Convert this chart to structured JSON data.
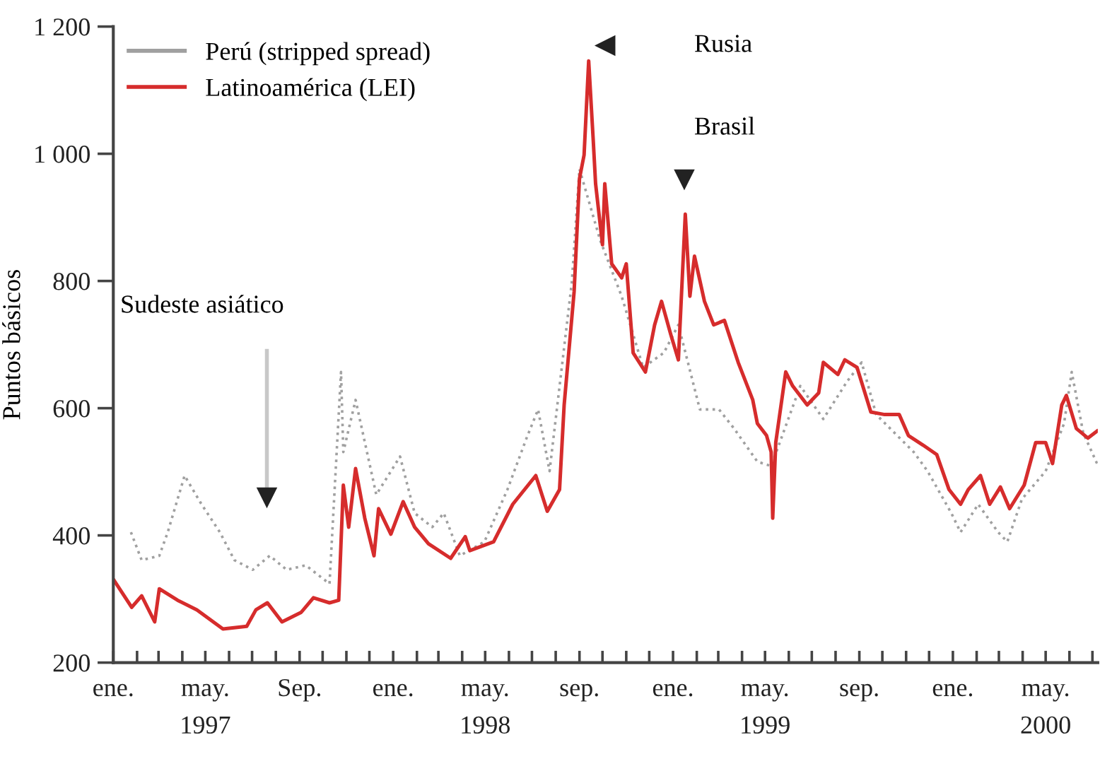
{
  "chart_data": {
    "type": "line",
    "ylabel": "Puntos básicos",
    "ylim": [
      200,
      1200
    ],
    "yticks": [
      {
        "value": 200,
        "label": "200"
      },
      {
        "value": 400,
        "label": "400"
      },
      {
        "value": 600,
        "label": "600"
      },
      {
        "value": 800,
        "label": "800"
      },
      {
        "value": 1000,
        "label": "1 000"
      },
      {
        "value": 1200,
        "label": "1 200"
      }
    ],
    "xlim": [
      "1997-01-01",
      "2000-07-08"
    ],
    "xticks": [
      {
        "value": "1997-01-01",
        "label": "ene."
      },
      {
        "value": "1997-02-01",
        "label": null
      },
      {
        "value": "1997-03-01",
        "label": null
      },
      {
        "value": "1997-04-01",
        "label": null
      },
      {
        "value": "1997-05-01",
        "label": "may.\n1997"
      },
      {
        "value": "1997-06-01",
        "label": null
      },
      {
        "value": "1997-07-01",
        "label": null
      },
      {
        "value": "1997-08-01",
        "label": null
      },
      {
        "value": "1997-09-01",
        "label": "Sep."
      },
      {
        "value": "1997-10-01",
        "label": null
      },
      {
        "value": "1997-11-01",
        "label": null
      },
      {
        "value": "1997-12-01",
        "label": null
      },
      {
        "value": "1998-01-01",
        "label": "ene."
      },
      {
        "value": "1998-02-01",
        "label": null
      },
      {
        "value": "1998-03-01",
        "label": null
      },
      {
        "value": "1998-04-01",
        "label": null
      },
      {
        "value": "1998-05-01",
        "label": "may.\n1998"
      },
      {
        "value": "1998-06-01",
        "label": null
      },
      {
        "value": "1998-07-01",
        "label": null
      },
      {
        "value": "1998-08-01",
        "label": null
      },
      {
        "value": "1998-09-01",
        "label": "sep."
      },
      {
        "value": "1998-10-01",
        "label": null
      },
      {
        "value": "1998-11-01",
        "label": null
      },
      {
        "value": "1998-12-01",
        "label": null
      },
      {
        "value": "1999-01-01",
        "label": "ene."
      },
      {
        "value": "1999-02-01",
        "label": null
      },
      {
        "value": "1999-03-01",
        "label": null
      },
      {
        "value": "1999-04-01",
        "label": null
      },
      {
        "value": "1999-05-01",
        "label": "may.\n1999"
      },
      {
        "value": "1999-06-01",
        "label": null
      },
      {
        "value": "1999-07-01",
        "label": null
      },
      {
        "value": "1999-08-01",
        "label": null
      },
      {
        "value": "1999-09-01",
        "label": "sep."
      },
      {
        "value": "1999-10-01",
        "label": null
      },
      {
        "value": "1999-11-01",
        "label": null
      },
      {
        "value": "1999-12-01",
        "label": null
      },
      {
        "value": "2000-01-01",
        "label": "ene."
      },
      {
        "value": "2000-02-01",
        "label": null
      },
      {
        "value": "2000-03-01",
        "label": null
      },
      {
        "value": "2000-04-01",
        "label": null
      },
      {
        "value": "2000-05-01",
        "label": "may.\n2000"
      },
      {
        "value": "2000-06-01",
        "label": null
      },
      {
        "value": "2000-07-01",
        "label": null
      }
    ],
    "legend": "top left",
    "series": [
      {
        "name": "Perú (stripped spread)",
        "color": "#a0a0a0",
        "line_style": "dotted",
        "x": [
          "1997-01-24",
          "1997-02-07",
          "1997-03-02",
          "1997-03-13",
          "1997-04-04",
          "1997-04-26",
          "1997-05-20",
          "1997-06-08",
          "1997-07-02",
          "1997-07-24",
          "1997-08-15",
          "1997-09-09",
          "1997-10-10",
          "1997-10-25",
          "1997-10-28",
          "1997-11-13",
          "1997-12-10",
          "1998-01-10",
          "1998-01-29",
          "1998-02-21",
          "1998-03-08",
          "1998-03-29",
          "1998-04-30",
          "1998-05-30",
          "1998-06-24",
          "1998-07-09",
          "1998-07-24",
          "1998-08-22",
          "1998-09-01",
          "1998-09-28",
          "1998-10-26",
          "1998-11-23",
          "1998-12-20",
          "1999-01-08",
          "1999-02-05",
          "1999-03-02",
          "1999-03-21",
          "1999-04-21",
          "1999-05-09",
          "1999-06-16",
          "1999-07-16",
          "1999-08-16",
          "1999-09-04",
          "1999-09-23",
          "1999-11-11",
          "1999-11-29",
          "1999-12-30",
          "2000-01-11",
          "2000-02-03",
          "2000-02-29",
          "2000-03-12",
          "2000-03-31",
          "2000-05-01",
          "2000-05-25",
          "2000-06-04",
          "2000-06-19",
          "2000-07-07"
        ],
        "values": [
          405,
          361,
          368,
          405,
          494,
          449,
          405,
          361,
          346,
          368,
          346,
          353,
          324,
          657,
          531,
          613,
          464,
          524,
          435,
          413,
          435,
          368,
          390,
          472,
          553,
          598,
          501,
          798,
          976,
          864,
          776,
          664,
          687,
          731,
          598,
          598,
          569,
          516,
          509,
          635,
          583,
          642,
          672,
          590,
          531,
          501,
          435,
          405,
          449,
          405,
          390,
          457,
          501,
          576,
          657,
          561,
          513
        ]
      },
      {
        "name": "Latinoamérica (LEI)",
        "color": "#d62c2c",
        "line_style": "solid",
        "x": [
          "1997-01-01",
          "1997-01-25",
          "1997-02-07",
          "1997-02-24",
          "1997-03-02",
          "1997-03-26",
          "1997-04-20",
          "1997-05-24",
          "1997-06-24",
          "1997-07-06",
          "1997-07-21",
          "1997-08-09",
          "1997-09-03",
          "1997-09-19",
          "1997-10-10",
          "1997-10-22",
          "1997-10-28",
          "1997-11-04",
          "1997-11-13",
          "1997-11-25",
          "1997-12-07",
          "1997-12-13",
          "1997-12-29",
          "1998-01-14",
          "1998-01-29",
          "1998-02-16",
          "1998-03-17",
          "1998-04-05",
          "1998-04-11",
          "1998-05-12",
          "1998-06-06",
          "1998-07-06",
          "1998-07-21",
          "1998-08-06",
          "1998-08-12",
          "1998-08-25",
          "1998-09-01",
          "1998-09-07",
          "1998-09-13",
          "1998-09-19",
          "1998-09-22",
          "1998-10-01",
          "1998-10-04",
          "1998-10-13",
          "1998-10-26",
          "1998-11-01",
          "1998-11-10",
          "1998-11-26",
          "1998-12-08",
          "1998-12-17",
          "1998-12-29",
          "1999-01-08",
          "1999-01-17",
          "1999-01-23",
          "1999-01-29",
          "1999-02-11",
          "1999-02-23",
          "1999-03-09",
          "1999-03-27",
          "1999-04-15",
          "1999-04-21",
          "1999-05-03",
          "1999-05-09",
          "1999-05-11",
          "1999-05-15",
          "1999-05-28",
          "1999-06-06",
          "1999-06-25",
          "1999-07-10",
          "1999-07-16",
          "1999-08-04",
          "1999-08-13",
          "1999-08-29",
          "1999-09-16",
          "1999-10-04",
          "1999-10-23",
          "1999-11-04",
          "1999-11-23",
          "1999-12-11",
          "1999-12-27",
          "2000-01-11",
          "2000-01-21",
          "2000-02-06",
          "2000-02-18",
          "2000-03-03",
          "2000-03-15",
          "2000-04-03",
          "2000-04-18",
          "2000-05-01",
          "2000-05-10",
          "2000-05-22",
          "2000-05-28",
          "2000-06-10",
          "2000-06-25",
          "2000-07-07"
        ],
        "values": [
          331,
          287,
          305,
          264,
          316,
          298,
          283,
          253,
          257,
          283,
          294,
          264,
          279,
          302,
          294,
          298,
          479,
          413,
          505,
          427,
          368,
          442,
          402,
          453,
          413,
          387,
          364,
          398,
          376,
          390,
          449,
          494,
          438,
          472,
          605,
          783,
          961,
          998,
          1146,
          1020,
          953,
          857,
          953,
          827,
          805,
          827,
          687,
          657,
          731,
          768,
          716,
          676,
          905,
          776,
          839,
          768,
          731,
          738,
          672,
          613,
          576,
          557,
          531,
          427,
          546,
          657,
          635,
          605,
          624,
          672,
          653,
          676,
          664,
          594,
          590,
          590,
          557,
          542,
          527,
          472,
          449,
          472,
          494,
          449,
          476,
          442,
          479,
          546,
          546,
          513,
          605,
          620,
          568,
          553,
          564
        ]
      }
    ],
    "annotations": [
      "Rusia",
      "Brasil",
      "Sudeste asiático"
    ]
  }
}
